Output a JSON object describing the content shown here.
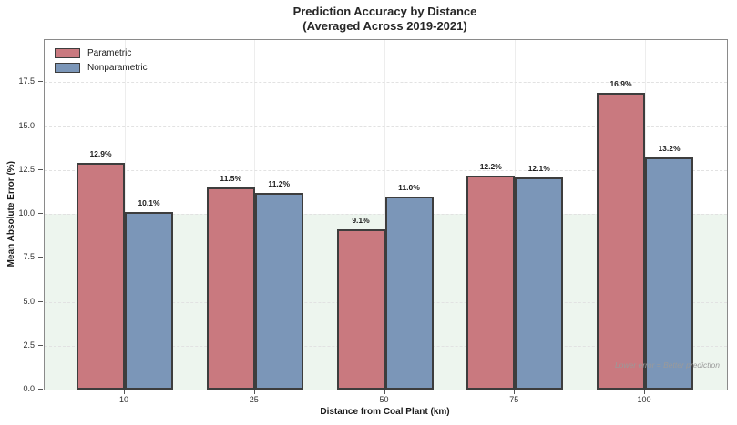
{
  "title": {
    "line1": "Prediction Accuracy by Distance",
    "line2": "(Averaged Across 2019-2021)"
  },
  "chart_data": {
    "type": "bar",
    "categories": [
      "10",
      "25",
      "50",
      "75",
      "100"
    ],
    "series": [
      {
        "name": "Parametric",
        "color": "#c9797f",
        "values": [
          12.9,
          11.5,
          9.1,
          12.2,
          16.9
        ],
        "labels": [
          "12.9%",
          "11.5%",
          "9.1%",
          "12.2%",
          "16.9%"
        ]
      },
      {
        "name": "Nonparametric",
        "color": "#7b96b8",
        "values": [
          10.1,
          11.2,
          11.0,
          12.1,
          13.2
        ],
        "labels": [
          "10.1%",
          "11.2%",
          "11.0%",
          "12.1%",
          "13.2%"
        ]
      }
    ],
    "title": "Prediction Accuracy by Distance (Averaged Across 2019-2021)",
    "xlabel": "Distance from Coal Plant (km)",
    "ylabel": "Mean Absolute Error (%)",
    "yticks": [
      0.0,
      2.5,
      5.0,
      7.5,
      10.0,
      12.5,
      15.0,
      17.5
    ],
    "ytick_labels": [
      "0.0",
      "2.5",
      "5.0",
      "7.5",
      "10.0",
      "12.5",
      "15.0",
      "17.5"
    ],
    "ylim": [
      0,
      19.9
    ],
    "grid": "horizontal-dashed-and-vertical-category-lines",
    "legend_position": "upper-left",
    "shaded_region": {
      "from": 0,
      "to": 10,
      "color": "#edf5ee",
      "annotation": "Lower error = Better prediction"
    }
  },
  "annotation": {
    "text": "Lower error = Better prediction"
  }
}
